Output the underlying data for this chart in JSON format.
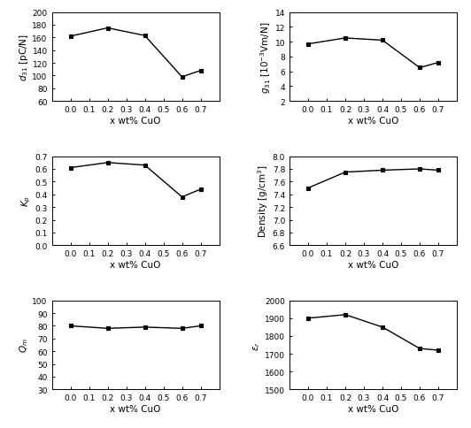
{
  "x": [
    0.0,
    0.2,
    0.4,
    0.6,
    0.7
  ],
  "d31": [
    162,
    175,
    163,
    98,
    108
  ],
  "d31_ylim": [
    60,
    200
  ],
  "d31_yticks": [
    60,
    80,
    100,
    120,
    140,
    160,
    180,
    200
  ],
  "g31": [
    9.7,
    10.5,
    10.2,
    6.5,
    7.2
  ],
  "g31_ylim": [
    2,
    14
  ],
  "g31_yticks": [
    2,
    4,
    6,
    8,
    10,
    12,
    14
  ],
  "Kp": [
    0.61,
    0.65,
    0.63,
    0.38,
    0.44
  ],
  "Kp_ylim": [
    0.0,
    0.7
  ],
  "Kp_yticks": [
    0.0,
    0.1,
    0.2,
    0.3,
    0.4,
    0.5,
    0.6,
    0.7
  ],
  "density": [
    7.5,
    7.75,
    7.78,
    7.8,
    7.78
  ],
  "density_ylim": [
    6.6,
    8.0
  ],
  "density_yticks": [
    6.6,
    6.8,
    7.0,
    7.2,
    7.4,
    7.6,
    7.8,
    8.0
  ],
  "Qm": [
    80,
    78,
    79,
    78,
    80
  ],
  "Qm_ylim": [
    30,
    100
  ],
  "Qm_yticks": [
    30,
    40,
    50,
    60,
    70,
    80,
    90,
    100
  ],
  "er": [
    1900,
    1920,
    1850,
    1730,
    1720
  ],
  "er_ylim": [
    1500,
    2000
  ],
  "er_yticks": [
    1500,
    1600,
    1700,
    1800,
    1900,
    2000
  ],
  "xlim": [
    -0.1,
    0.8
  ],
  "xticks": [
    0.0,
    0.1,
    0.2,
    0.3,
    0.4,
    0.5,
    0.6,
    0.7
  ],
  "xlabel": "x wt% CuO",
  "marker": "s",
  "markersize": 3.5,
  "markerfacecolor": "black",
  "linewidth": 1.0,
  "color": "black",
  "tick_fontsize": 6.5,
  "label_fontsize": 7.5
}
